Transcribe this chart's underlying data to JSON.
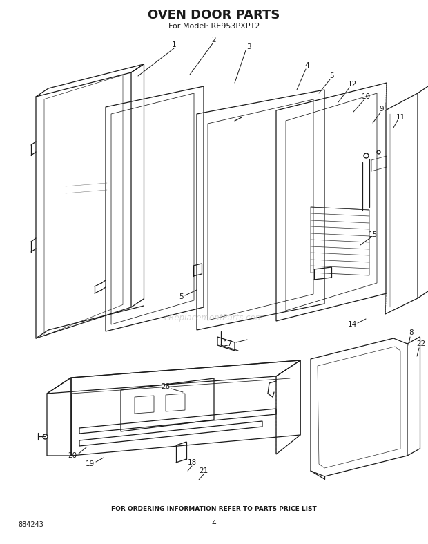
{
  "title": "OVEN DOOR PARTS",
  "subtitle": "For Model: RE953PXPT2",
  "footer_text": "FOR ORDERING INFORMATION REFER TO PARTS PRICE LIST",
  "part_number": "884243",
  "page_number": "4",
  "watermark": "eReplacementParts.com",
  "bg_color": "#ffffff",
  "title_fontsize": 13,
  "subtitle_fontsize": 8,
  "footer_fontsize": 6.5,
  "lw_main": 0.9,
  "lw_thin": 0.55,
  "gray": "#1a1a1a"
}
